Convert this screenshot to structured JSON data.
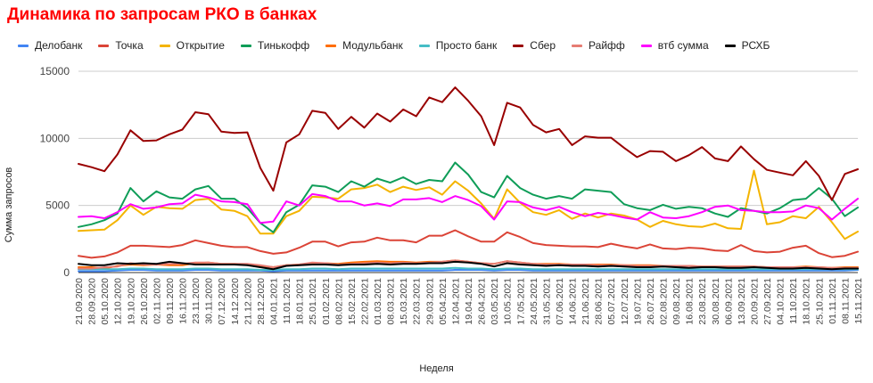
{
  "chart_data": {
    "type": "line",
    "title": "Динамика по запросам РКО в банках",
    "xlabel": "Неделя",
    "ylabel": "Сумма запросов",
    "ylim": [
      0,
      15000
    ],
    "yticks": [
      0,
      5000,
      10000,
      15000
    ],
    "grid": true,
    "legend_position": "top",
    "x": [
      "21.09.2020",
      "28.09.2020",
      "05.10.2020",
      "12.10.2020",
      "19.10.2020",
      "26.10.2020",
      "02.11.2020",
      "09.11.2020",
      "16.11.2020",
      "23.11.2020",
      "30.11.2020",
      "07.12.2020",
      "14.12.2020",
      "21.12.2020",
      "28.12.2020",
      "04.01.2021",
      "11.01.2021",
      "18.01.2021",
      "25.01.2021",
      "01.02.2021",
      "08.02.2021",
      "15.02.2021",
      "22.02.2021",
      "01.03.2021",
      "08.03.2021",
      "15.03.2021",
      "22.03.2021",
      "29.03.2021",
      "05.04.2021",
      "12.04.2021",
      "19.04.2021",
      "26.04.2021",
      "03.05.2021",
      "10.05.2021",
      "17.05.2021",
      "24.05.2021",
      "31.05.2021",
      "07.06.2021",
      "14.06.2021",
      "21.06.2021",
      "28.06.2021",
      "05.07.2021",
      "12.07.2021",
      "19.07.2021",
      "26.07.2021",
      "02.08.2021",
      "09.08.2021",
      "16.08.2021",
      "23.08.2021",
      "30.08.2021",
      "06.09.2021",
      "13.09.2021",
      "20.09.2021",
      "27.09.2021",
      "04.10.2021",
      "11.10.2021",
      "18.10.2021",
      "25.10.2021",
      "01.11.2021",
      "08.11.2021",
      "15.11.2021"
    ],
    "series": [
      {
        "name": "Делобанк",
        "color": "#4285f4",
        "values": [
          100,
          100,
          100,
          150,
          200,
          200,
          150,
          150,
          150,
          200,
          200,
          150,
          150,
          150,
          150,
          100,
          150,
          150,
          150,
          150,
          150,
          150,
          150,
          150,
          150,
          150,
          150,
          150,
          150,
          200,
          200,
          200,
          150,
          200,
          200,
          150,
          150,
          150,
          150,
          150,
          150,
          150,
          150,
          150,
          150,
          150,
          150,
          150,
          150,
          150,
          150,
          150,
          150,
          150,
          150,
          150,
          150,
          150,
          150,
          150,
          200
        ]
      },
      {
        "name": "Точка",
        "color": "#db4437",
        "values": [
          1250,
          1100,
          1200,
          1500,
          2000,
          2000,
          1950,
          1900,
          2050,
          2400,
          2200,
          2000,
          1900,
          1900,
          1600,
          1400,
          1500,
          1850,
          2300,
          2300,
          1950,
          2250,
          2300,
          2600,
          2400,
          2400,
          2250,
          2750,
          2750,
          3150,
          2700,
          2300,
          2300,
          3000,
          2650,
          2200,
          2050,
          2000,
          1950,
          1950,
          1900,
          2150,
          1950,
          1800,
          2100,
          1800,
          1750,
          1850,
          1800,
          1650,
          1600,
          2050,
          1600,
          1500,
          1550,
          1850,
          2000,
          1450,
          1150,
          1250,
          1550
        ]
      },
      {
        "name": "Открытие",
        "color": "#f4b400",
        "values": [
          3100,
          3150,
          3200,
          3900,
          5000,
          4300,
          4900,
          4800,
          4750,
          5400,
          5500,
          4700,
          4600,
          4200,
          2900,
          2900,
          4200,
          4600,
          5650,
          5600,
          5500,
          6200,
          6300,
          6550,
          6000,
          6400,
          6150,
          6350,
          5800,
          6800,
          6100,
          5150,
          4000,
          6200,
          5200,
          4500,
          4300,
          4650,
          4000,
          4400,
          4100,
          4400,
          4250,
          3950,
          3400,
          3850,
          3600,
          3450,
          3400,
          3650,
          3300,
          3250,
          7600,
          3600,
          3750,
          4200,
          4050,
          4900,
          3750,
          2500,
          3050
        ]
      },
      {
        "name": "Тинькофф",
        "color": "#0f9d58",
        "values": [
          3400,
          3600,
          3900,
          4400,
          6300,
          5300,
          6050,
          5600,
          5500,
          6200,
          6450,
          5500,
          5500,
          4800,
          3700,
          3000,
          4500,
          5050,
          6500,
          6400,
          6000,
          6800,
          6400,
          7000,
          6700,
          7100,
          6600,
          6900,
          6800,
          8200,
          7300,
          6000,
          5600,
          7200,
          6300,
          5800,
          5500,
          5700,
          5500,
          6200,
          6100,
          6000,
          5100,
          4800,
          4650,
          5050,
          4750,
          4900,
          4800,
          4400,
          4150,
          4800,
          4600,
          4400,
          4800,
          5400,
          5500,
          6300,
          5500,
          4200,
          4850
        ]
      },
      {
        "name": "Модульбанк",
        "color": "#ff6d00",
        "values": [
          400,
          400,
          300,
          500,
          600,
          550,
          600,
          550,
          550,
          700,
          750,
          650,
          650,
          600,
          500,
          400,
          550,
          600,
          700,
          700,
          650,
          750,
          800,
          850,
          800,
          800,
          750,
          800,
          800,
          900,
          800,
          700,
          650,
          850,
          750,
          650,
          650,
          650,
          600,
          600,
          600,
          600,
          550,
          550,
          550,
          500,
          500,
          500,
          450,
          450,
          450,
          450,
          450,
          400,
          400,
          400,
          450,
          400,
          350,
          400,
          400
        ]
      },
      {
        "name": "Просто банк",
        "color": "#46bdc6",
        "values": [
          250,
          250,
          250,
          250,
          300,
          300,
          250,
          250,
          250,
          300,
          300,
          250,
          250,
          250,
          200,
          200,
          250,
          250,
          300,
          300,
          250,
          300,
          300,
          300,
          300,
          300,
          300,
          300,
          300,
          350,
          300,
          300,
          250,
          300,
          300,
          250,
          250,
          250,
          250,
          250,
          250,
          250,
          250,
          250,
          250,
          250,
          250,
          250,
          250,
          250,
          250,
          250,
          250,
          250,
          250,
          250,
          250,
          250,
          250,
          250,
          250
        ]
      },
      {
        "name": "Сбер",
        "color": "#990000",
        "values": [
          8100,
          7850,
          7550,
          8800,
          10600,
          9800,
          9850,
          10300,
          10650,
          11950,
          11800,
          10500,
          10400,
          10450,
          7800,
          6100,
          9700,
          10300,
          12050,
          11900,
          10700,
          11600,
          10800,
          11850,
          11250,
          12150,
          11650,
          13050,
          12700,
          13800,
          12800,
          11650,
          9500,
          12650,
          12300,
          11000,
          10450,
          10700,
          9500,
          10150,
          10050,
          10050,
          9300,
          8600,
          9050,
          9000,
          8300,
          8750,
          9350,
          8500,
          8300,
          9400,
          8450,
          7650,
          7450,
          7250,
          8300,
          7200,
          5400,
          7350,
          7700
        ]
      },
      {
        "name": "Райфф",
        "color": "#e67c73",
        "values": [
          300,
          300,
          400,
          450,
          700,
          600,
          600,
          650,
          650,
          750,
          750,
          650,
          650,
          650,
          550,
          400,
          550,
          600,
          750,
          700,
          600,
          650,
          700,
          750,
          700,
          750,
          700,
          750,
          800,
          900,
          800,
          700,
          650,
          850,
          750,
          650,
          600,
          600,
          600,
          600,
          550,
          550,
          550,
          500,
          500,
          500,
          500,
          500,
          450,
          450,
          450,
          450,
          450,
          400,
          400,
          400,
          400,
          400,
          350,
          350,
          350
        ]
      },
      {
        "name": "втб сумма",
        "color": "#ff00ff",
        "values": [
          4150,
          4200,
          4050,
          4500,
          5100,
          4750,
          4850,
          5100,
          5150,
          5800,
          5600,
          5300,
          5250,
          5100,
          3700,
          3800,
          5300,
          5000,
          5850,
          5700,
          5300,
          5300,
          5000,
          5150,
          4950,
          5450,
          5450,
          5550,
          5250,
          5700,
          5400,
          4950,
          3950,
          5300,
          5250,
          4850,
          4650,
          4900,
          4500,
          4200,
          4450,
          4300,
          4100,
          3950,
          4500,
          4100,
          4050,
          4200,
          4500,
          4900,
          5000,
          4650,
          4600,
          4500,
          4500,
          4550,
          5000,
          4800,
          3950,
          4750,
          5500
        ]
      },
      {
        "name": "РСХБ",
        "color": "#000000",
        "values": [
          650,
          550,
          550,
          700,
          650,
          700,
          650,
          800,
          700,
          600,
          600,
          600,
          600,
          550,
          400,
          250,
          500,
          550,
          600,
          600,
          550,
          600,
          600,
          650,
          600,
          650,
          650,
          700,
          700,
          800,
          750,
          650,
          450,
          700,
          600,
          550,
          500,
          550,
          500,
          500,
          450,
          500,
          450,
          400,
          400,
          450,
          400,
          350,
          400,
          400,
          350,
          350,
          400,
          350,
          300,
          300,
          350,
          300,
          250,
          300,
          300
        ]
      }
    ]
  }
}
